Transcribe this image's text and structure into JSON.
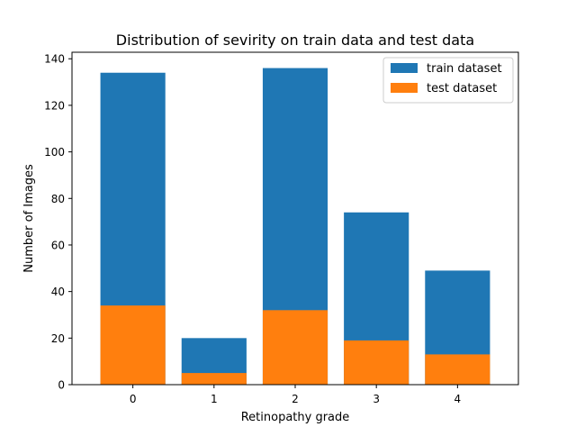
{
  "chart_data": {
    "type": "bar",
    "stacked": "overlay",
    "title": "Distribution of sevirity on train data and test data",
    "xlabel": "Retinopathy grade",
    "ylabel": "Number of Images",
    "categories": [
      "0",
      "1",
      "2",
      "3",
      "4"
    ],
    "series": [
      {
        "name": "train dataset",
        "color": "#1f77b4",
        "values": [
          134,
          20,
          136,
          74,
          49
        ]
      },
      {
        "name": "test dataset",
        "color": "#ff7f0e",
        "values": [
          34,
          5,
          32,
          19,
          13
        ]
      }
    ],
    "ylim": [
      0,
      142.8
    ],
    "yticks": [
      "0",
      "20",
      "40",
      "60",
      "80",
      "100",
      "120",
      "140"
    ],
    "grid": false,
    "legend_position": "top-right"
  }
}
